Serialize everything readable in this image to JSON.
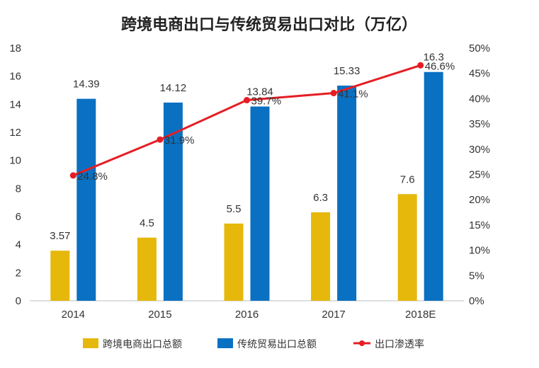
{
  "chart_data": {
    "type": "bar",
    "title": "跨境电商出口与传统贸易出口对比（万亿）",
    "categories": [
      "2014",
      "2015",
      "2016",
      "2017",
      "2018E"
    ],
    "series": [
      {
        "name": "跨境电商出口总额",
        "type": "bar",
        "axis": "left",
        "color": "#E5B80B",
        "values": [
          3.57,
          4.5,
          5.5,
          6.3,
          7.6
        ],
        "labels": [
          "3.57",
          "4.5",
          "5.5",
          "6.3",
          "7.6"
        ]
      },
      {
        "name": "传统贸易出口总额",
        "type": "bar",
        "axis": "left",
        "color": "#0A70C2",
        "values": [
          14.39,
          14.12,
          13.84,
          15.33,
          16.3
        ],
        "labels": [
          "14.39",
          "14.12",
          "13.84",
          "15.33",
          "16.3"
        ]
      },
      {
        "name": "出口渗透率",
        "type": "line",
        "axis": "right",
        "color": "#E61D24",
        "values": [
          24.8,
          31.9,
          39.7,
          41.1,
          46.6
        ],
        "labels": [
          "24.8%",
          "31.9%",
          "39.7%",
          "41.1%",
          "46.6%"
        ]
      }
    ],
    "y_left": {
      "min": 0,
      "max": 18,
      "step": 2,
      "ticks": [
        "0",
        "2",
        "4",
        "6",
        "8",
        "10",
        "12",
        "14",
        "16",
        "18"
      ]
    },
    "y_right": {
      "min": 0,
      "max": 50,
      "step": 5,
      "ticks": [
        "0%",
        "5%",
        "10%",
        "15%",
        "20%",
        "25%",
        "30%",
        "35%",
        "40%",
        "45%",
        "50%"
      ]
    },
    "grid": false,
    "legend": "bottom"
  }
}
